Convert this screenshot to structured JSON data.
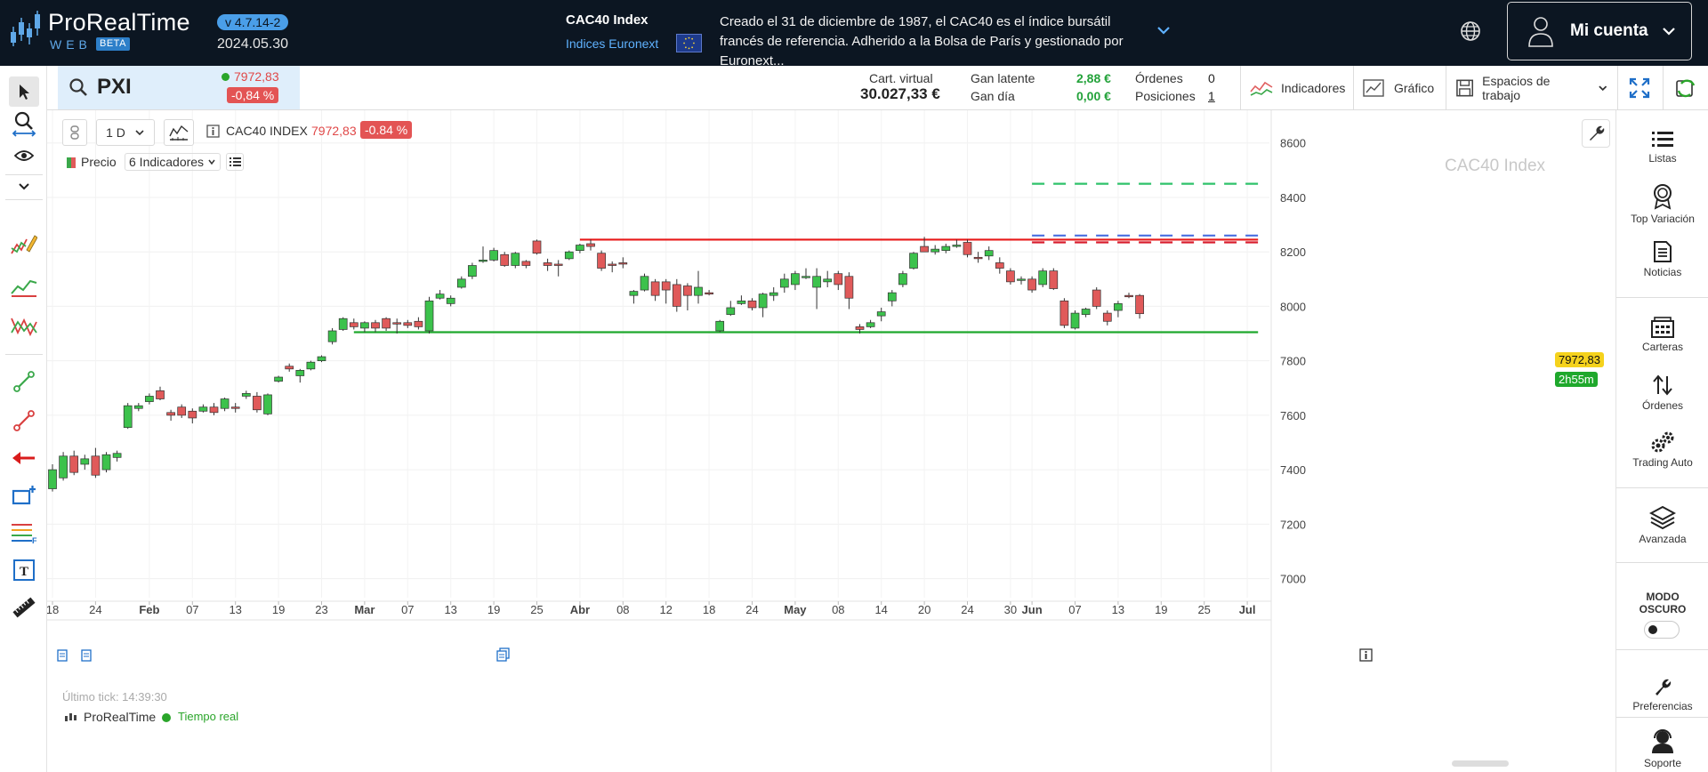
{
  "topbar": {
    "logo_text": "ProRealTime",
    "logo_sub": "WEB",
    "logo_beta": "BETA",
    "version": "v 4.7.14-2",
    "date": "2024.05.30",
    "instrument_name": "CAC40 Index",
    "instrument_exchange": "Indices Euronext",
    "description": "Creado el 31 de diciembre de 1987, el CAC40 es el índice bursátil francés de referencia. Adherido a la Bolsa de París y gestionado por Euronext...",
    "account_label": "Mi cuenta"
  },
  "symbol": {
    "ticker": "PXI",
    "price": "7972,83",
    "change_pct": "-0,84 %"
  },
  "account": {
    "virtual_label": "Cart. virtual",
    "virtual_value": "30.027,33 €",
    "unrealized_label": "Gan latente",
    "unrealized_value": "2,88 €",
    "day_label": "Gan día",
    "day_value": "0,00 €",
    "orders_label": "Órdenes",
    "orders_value": "0",
    "positions_label": "Posiciones",
    "positions_value": "1"
  },
  "toolbar": {
    "indicators": "Indicadores",
    "chart": "Gráfico",
    "workspaces": "Espacios de trabajo"
  },
  "chart_controls": {
    "timeframe": "1 D",
    "instrument": "CAC40 INDEX",
    "price": "7972,83",
    "change_pct": "-0.84 %",
    "price_label": "Precio",
    "indicators_count": "6 Indicadores"
  },
  "chart_info": {
    "watermark": "CAC40 Index",
    "last_tick": "Último tick: 14:39:30",
    "brand": "ProRealTime",
    "realtime": "Tiempo real",
    "last_price_tag": "7972,83",
    "countdown_tag": "2h55m"
  },
  "rightbar": {
    "lists": "Listas",
    "top_variation": "Top Variación",
    "news": "Noticias",
    "portfolios": "Carteras",
    "orders": "Órdenes",
    "auto_trading": "Trading Auto",
    "advanced": "Avanzada",
    "dark_mode_line1": "MODO",
    "dark_mode_line2": "OSCURO",
    "preferences": "Preferencias",
    "support": "Soporte"
  },
  "colors": {
    "bull": "#3cc24c",
    "bear": "#e05a5a",
    "resistance": "#e81818",
    "support": "#1fa82c",
    "target_green": "#2ec26a",
    "target_blue": "#4a6fe0",
    "target_red": "#d81c2c"
  },
  "chart_data": {
    "type": "candlestick",
    "title": "CAC40 Index",
    "ylim": [
      6930,
      8720
    ],
    "yticks": [
      7000,
      7200,
      7400,
      7600,
      7800,
      8000,
      8200,
      8400,
      8600
    ],
    "ytick_labels": [
      "7000",
      "7200",
      "7400",
      "7600",
      "7800",
      "8000",
      "8200",
      "8400",
      "8600"
    ],
    "xtick_labels": [
      "18",
      "24",
      "Feb",
      "07",
      "13",
      "19",
      "23",
      "Mar",
      "07",
      "13",
      "19",
      "25",
      "Abr",
      "08",
      "12",
      "18",
      "24",
      "May",
      "08",
      "14",
      "20",
      "24",
      "30",
      "Jun",
      "07",
      "13",
      "19",
      "25",
      "Jul"
    ],
    "xtick_index": [
      0,
      4,
      9,
      13,
      17,
      21,
      25,
      29,
      33,
      37,
      41,
      45,
      49,
      53,
      57,
      61,
      65,
      69,
      73,
      77,
      81,
      85,
      89,
      91,
      95,
      99,
      103,
      107,
      111
    ],
    "candles": [
      {
        "o": 7330,
        "h": 7420,
        "l": 7320,
        "c": 7400
      },
      {
        "o": 7370,
        "h": 7465,
        "l": 7360,
        "c": 7450
      },
      {
        "o": 7450,
        "h": 7470,
        "l": 7380,
        "c": 7390
      },
      {
        "o": 7420,
        "h": 7455,
        "l": 7400,
        "c": 7440
      },
      {
        "o": 7450,
        "h": 7480,
        "l": 7370,
        "c": 7380
      },
      {
        "o": 7400,
        "h": 7465,
        "l": 7390,
        "c": 7455
      },
      {
        "o": 7445,
        "h": 7470,
        "l": 7430,
        "c": 7460
      },
      {
        "o": 7555,
        "h": 7645,
        "l": 7550,
        "c": 7635
      },
      {
        "o": 7625,
        "h": 7645,
        "l": 7615,
        "c": 7635
      },
      {
        "o": 7650,
        "h": 7680,
        "l": 7640,
        "c": 7670
      },
      {
        "o": 7690,
        "h": 7705,
        "l": 7655,
        "c": 7660
      },
      {
        "o": 7610,
        "h": 7620,
        "l": 7580,
        "c": 7600
      },
      {
        "o": 7630,
        "h": 7640,
        "l": 7590,
        "c": 7600
      },
      {
        "o": 7615,
        "h": 7625,
        "l": 7570,
        "c": 7590
      },
      {
        "o": 7615,
        "h": 7640,
        "l": 7610,
        "c": 7630
      },
      {
        "o": 7630,
        "h": 7645,
        "l": 7600,
        "c": 7610
      },
      {
        "o": 7625,
        "h": 7665,
        "l": 7615,
        "c": 7660
      },
      {
        "o": 7630,
        "h": 7645,
        "l": 7610,
        "c": 7625
      },
      {
        "o": 7670,
        "h": 7690,
        "l": 7660,
        "c": 7680
      },
      {
        "o": 7670,
        "h": 7685,
        "l": 7610,
        "c": 7620
      },
      {
        "o": 7605,
        "h": 7680,
        "l": 7600,
        "c": 7675
      },
      {
        "o": 7725,
        "h": 7745,
        "l": 7720,
        "c": 7740
      },
      {
        "o": 7780,
        "h": 7790,
        "l": 7760,
        "c": 7770
      },
      {
        "o": 7745,
        "h": 7770,
        "l": 7720,
        "c": 7765
      },
      {
        "o": 7770,
        "h": 7800,
        "l": 7765,
        "c": 7795
      },
      {
        "o": 7800,
        "h": 7820,
        "l": 7795,
        "c": 7815
      },
      {
        "o": 7870,
        "h": 7920,
        "l": 7860,
        "c": 7910
      },
      {
        "o": 7915,
        "h": 7960,
        "l": 7910,
        "c": 7955
      },
      {
        "o": 7940,
        "h": 7955,
        "l": 7915,
        "c": 7925
      },
      {
        "o": 7920,
        "h": 7945,
        "l": 7905,
        "c": 7940
      },
      {
        "o": 7940,
        "h": 7950,
        "l": 7905,
        "c": 7920
      },
      {
        "o": 7955,
        "h": 7960,
        "l": 7910,
        "c": 7920
      },
      {
        "o": 7940,
        "h": 7955,
        "l": 7900,
        "c": 7935
      },
      {
        "o": 7940,
        "h": 7950,
        "l": 7920,
        "c": 7930
      },
      {
        "o": 7945,
        "h": 7960,
        "l": 7915,
        "c": 7925
      },
      {
        "o": 7910,
        "h": 8035,
        "l": 7900,
        "c": 8020
      },
      {
        "o": 8030,
        "h": 8060,
        "l": 8025,
        "c": 8045
      },
      {
        "o": 8010,
        "h": 8040,
        "l": 8000,
        "c": 8030
      },
      {
        "o": 8070,
        "h": 8110,
        "l": 8065,
        "c": 8100
      },
      {
        "o": 8110,
        "h": 8160,
        "l": 8100,
        "c": 8150
      },
      {
        "o": 8165,
        "h": 8220,
        "l": 8160,
        "c": 8170
      },
      {
        "o": 8170,
        "h": 8215,
        "l": 8165,
        "c": 8205
      },
      {
        "o": 8190,
        "h": 8200,
        "l": 8145,
        "c": 8150
      },
      {
        "o": 8150,
        "h": 8200,
        "l": 8140,
        "c": 8195
      },
      {
        "o": 8165,
        "h": 8170,
        "l": 8140,
        "c": 8150
      },
      {
        "o": 8240,
        "h": 8245,
        "l": 8190,
        "c": 8195
      },
      {
        "o": 8160,
        "h": 8175,
        "l": 8130,
        "c": 8150
      },
      {
        "o": 8155,
        "h": 8170,
        "l": 8110,
        "c": 8150
      },
      {
        "o": 8175,
        "h": 8205,
        "l": 8170,
        "c": 8200
      },
      {
        "o": 8205,
        "h": 8230,
        "l": 8195,
        "c": 8225
      },
      {
        "o": 8230,
        "h": 8245,
        "l": 8205,
        "c": 8220
      },
      {
        "o": 8195,
        "h": 8205,
        "l": 8130,
        "c": 8140
      },
      {
        "o": 8155,
        "h": 8165,
        "l": 8125,
        "c": 8150
      },
      {
        "o": 8160,
        "h": 8180,
        "l": 8140,
        "c": 8155
      },
      {
        "o": 8040,
        "h": 8060,
        "l": 8010,
        "c": 8055
      },
      {
        "o": 8060,
        "h": 8120,
        "l": 8055,
        "c": 8110
      },
      {
        "o": 8090,
        "h": 8100,
        "l": 8020,
        "c": 8040
      },
      {
        "o": 8090,
        "h": 8100,
        "l": 8010,
        "c": 8060
      },
      {
        "o": 8080,
        "h": 8100,
        "l": 7980,
        "c": 8000
      },
      {
        "o": 8075,
        "h": 8085,
        "l": 7985,
        "c": 8040
      },
      {
        "o": 8040,
        "h": 8130,
        "l": 8010,
        "c": 8070
      },
      {
        "o": 8050,
        "h": 8060,
        "l": 8040,
        "c": 8045
      },
      {
        "o": 7910,
        "h": 7950,
        "l": 7905,
        "c": 7945
      },
      {
        "o": 7970,
        "h": 8020,
        "l": 7965,
        "c": 7995
      },
      {
        "o": 8010,
        "h": 8040,
        "l": 8005,
        "c": 8020
      },
      {
        "o": 8020,
        "h": 8030,
        "l": 7985,
        "c": 7995
      },
      {
        "o": 7995,
        "h": 8050,
        "l": 7960,
        "c": 8045
      },
      {
        "o": 8040,
        "h": 8070,
        "l": 8020,
        "c": 8050
      },
      {
        "o": 8070,
        "h": 8120,
        "l": 8050,
        "c": 8100
      },
      {
        "o": 8080,
        "h": 8130,
        "l": 8060,
        "c": 8120
      },
      {
        "o": 8110,
        "h": 8140,
        "l": 8100,
        "c": 8110
      },
      {
        "o": 8070,
        "h": 8140,
        "l": 7990,
        "c": 8110
      },
      {
        "o": 8090,
        "h": 8130,
        "l": 8070,
        "c": 8100
      },
      {
        "o": 8120,
        "h": 8130,
        "l": 8060,
        "c": 8080
      },
      {
        "o": 8110,
        "h": 8125,
        "l": 7990,
        "c": 8030
      },
      {
        "o": 7925,
        "h": 7935,
        "l": 7900,
        "c": 7915
      },
      {
        "o": 7925,
        "h": 7950,
        "l": 7920,
        "c": 7940
      },
      {
        "o": 7965,
        "h": 7995,
        "l": 7945,
        "c": 7980
      },
      {
        "o": 8020,
        "h": 8060,
        "l": 8000,
        "c": 8050
      },
      {
        "o": 8080,
        "h": 8130,
        "l": 8070,
        "c": 8120
      },
      {
        "o": 8140,
        "h": 8200,
        "l": 8135,
        "c": 8195
      },
      {
        "o": 8220,
        "h": 8255,
        "l": 8200,
        "c": 8200
      },
      {
        "o": 8200,
        "h": 8225,
        "l": 8190,
        "c": 8210
      },
      {
        "o": 8205,
        "h": 8230,
        "l": 8195,
        "c": 8220
      },
      {
        "o": 8220,
        "h": 8245,
        "l": 8215,
        "c": 8225
      },
      {
        "o": 8235,
        "h": 8245,
        "l": 8180,
        "c": 8190
      },
      {
        "o": 8180,
        "h": 8200,
        "l": 8160,
        "c": 8175
      },
      {
        "o": 8185,
        "h": 8220,
        "l": 8170,
        "c": 8205
      },
      {
        "o": 8160,
        "h": 8180,
        "l": 8120,
        "c": 8140
      },
      {
        "o": 8130,
        "h": 8140,
        "l": 8080,
        "c": 8090
      },
      {
        "o": 8100,
        "h": 8110,
        "l": 8080,
        "c": 8100
      },
      {
        "o": 8100,
        "h": 8110,
        "l": 8050,
        "c": 8060
      },
      {
        "o": 8080,
        "h": 8140,
        "l": 8070,
        "c": 8130
      },
      {
        "o": 8130,
        "h": 8140,
        "l": 8060,
        "c": 8065
      },
      {
        "o": 8020,
        "h": 8030,
        "l": 7920,
        "c": 7930
      },
      {
        "o": 7920,
        "h": 7985,
        "l": 7915,
        "c": 7975
      },
      {
        "o": 7970,
        "h": 7995,
        "l": 7960,
        "c": 7990
      },
      {
        "o": 8060,
        "h": 8070,
        "l": 7990,
        "c": 8000
      },
      {
        "o": 7975,
        "h": 7985,
        "l": 7930,
        "c": 7945
      },
      {
        "o": 7985,
        "h": 8020,
        "l": 7960,
        "c": 8010
      },
      {
        "o": 8040,
        "h": 8050,
        "l": 8030,
        "c": 8035
      },
      {
        "o": 8040,
        "h": 8045,
        "l": 7955,
        "c": 7973
      }
    ],
    "horizontal_lines": [
      {
        "name": "resistance",
        "y": 8245,
        "from_index": 49,
        "to_index": 112,
        "style": "solid"
      },
      {
        "name": "support",
        "y": 7905,
        "from_index": 28,
        "to_index": 112,
        "style": "solid"
      },
      {
        "name": "target-1",
        "y": 8450,
        "from_index": 91,
        "to_index": 112,
        "style": "dashed"
      },
      {
        "name": "target-2",
        "y": 8260,
        "from_index": 91,
        "to_index": 112,
        "style": "dashed"
      },
      {
        "name": "target-3",
        "y": 8235,
        "from_index": 91,
        "to_index": 112,
        "style": "dashed"
      }
    ]
  }
}
